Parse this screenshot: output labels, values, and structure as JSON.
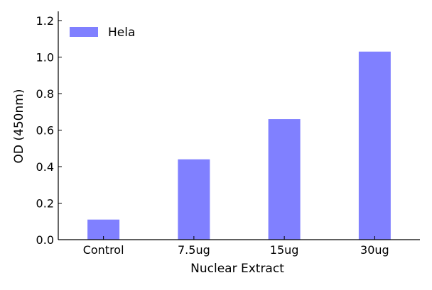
{
  "chart_data": {
    "type": "bar",
    "title": "",
    "xlabel": "Nuclear Extract",
    "ylabel": "OD (450nm)",
    "categories": [
      "Control",
      "7.5ug",
      "15ug",
      "30ug"
    ],
    "series": [
      {
        "name": "Hela",
        "values": [
          0.11,
          0.44,
          0.66,
          1.03
        ],
        "color": "#8080ff"
      }
    ],
    "ylim": [
      0,
      1.2
    ],
    "yticks": [
      0.0,
      0.2,
      0.4,
      0.6,
      0.8,
      1.0,
      1.2
    ],
    "ytick_labels": [
      "0.0",
      "0.2",
      "0.4",
      "0.6",
      "0.8",
      "1.0",
      "1.2"
    ],
    "grid": false,
    "legend_position": "top-left"
  }
}
